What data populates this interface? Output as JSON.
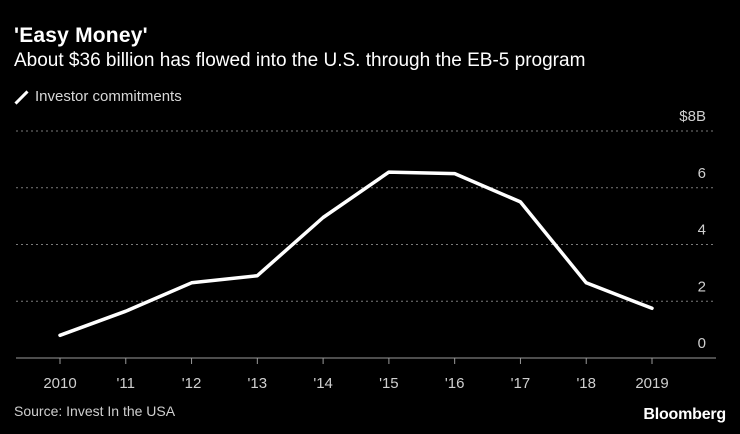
{
  "header": {
    "title": "'Easy Money'",
    "subtitle": "About $36 billion has flowed into the U.S. through the EB-5 program"
  },
  "legend": {
    "label": "Investor commitments"
  },
  "footer": {
    "source": "Source: Invest In the USA",
    "brand": "Bloomberg"
  },
  "colors": {
    "background": "#000000",
    "line": "#ffffff",
    "grid": "#888888",
    "text": "#cfcfcf"
  },
  "chart_data": {
    "type": "line",
    "title": "'Easy Money'",
    "subtitle": "About $36 billion has flowed into the U.S. through the EB-5 program",
    "categories": [
      "2010",
      "'11",
      "'12",
      "'13",
      "'14",
      "'15",
      "'16",
      "'17",
      "'18",
      "2019"
    ],
    "series": [
      {
        "name": "Investor commitments",
        "values": [
          0.8,
          1.65,
          2.65,
          2.9,
          4.95,
          6.55,
          6.5,
          5.5,
          2.65,
          1.75
        ]
      }
    ],
    "yticks": [
      {
        "value": 0,
        "label": "0"
      },
      {
        "value": 2,
        "label": "2"
      },
      {
        "value": 4,
        "label": "4"
      },
      {
        "value": 6,
        "label": "6"
      },
      {
        "value": 8,
        "label": "$8B"
      }
    ],
    "ylim": [
      0,
      8
    ],
    "grid": true,
    "legend_position": "top-left"
  }
}
